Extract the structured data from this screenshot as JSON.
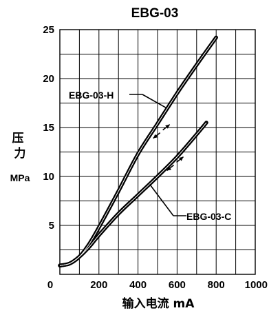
{
  "chart_data": {
    "type": "line",
    "title": "EBG-03",
    "ylabel": "压\n力",
    "yunit": "MPa",
    "xlabel": "输入电流  mA",
    "xlim": [
      0,
      1000
    ],
    "ylim": [
      0,
      25
    ],
    "x_ticks": [
      "0",
      "200",
      "400",
      "600",
      "800",
      "1000"
    ],
    "y_ticks": [
      "5",
      "10",
      "15",
      "20",
      "25"
    ],
    "grid": true,
    "series": [
      {
        "name": "EBG-03-H",
        "x": [
          0,
          50,
          100,
          150,
          200,
          300,
          400,
          500,
          600,
          700,
          800
        ],
        "y": [
          0.9,
          1.1,
          1.8,
          3.1,
          4.8,
          8.5,
          12.3,
          15.4,
          18.5,
          21.4,
          24.2
        ]
      },
      {
        "name": "EBG-03-C",
        "x": [
          0,
          50,
          100,
          150,
          200,
          300,
          400,
          500,
          600,
          700,
          750
        ],
        "y": [
          0.9,
          1.1,
          1.8,
          2.8,
          4.0,
          6.2,
          8.1,
          10.0,
          12.0,
          14.3,
          15.5
        ]
      }
    ]
  }
}
